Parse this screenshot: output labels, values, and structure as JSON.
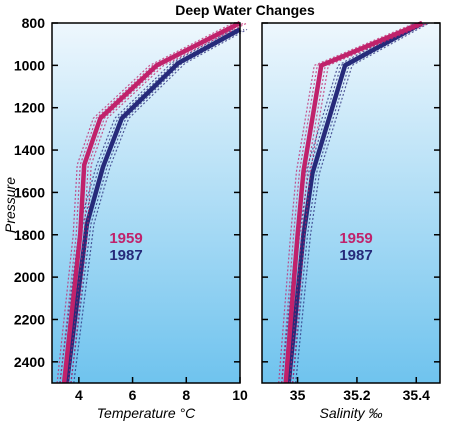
{
  "chart_data": {
    "title": "Deep Water Changes",
    "ylabel": "Pressure",
    "ylim": [
      800,
      2500
    ],
    "y_inverted": true,
    "y_ticks": [
      800,
      1000,
      1200,
      1400,
      1600,
      1800,
      2000,
      2200,
      2400
    ],
    "colors": {
      "1959": "#c0226b",
      "1987": "#262a7a",
      "panel_top": "#eef7fd",
      "panel_bottom": "#6fc3ee"
    },
    "panels": [
      {
        "type": "line",
        "xlabel": "Temperature °C",
        "xlim": [
          3,
          10
        ],
        "x_ticks": [
          4,
          6,
          8,
          10
        ],
        "series": [
          {
            "name": "1959",
            "x": [
              3.45,
              4.05,
              4.2,
              4.8,
              6.9,
              10.0
            ],
            "y": [
              2500,
              1800,
              1470,
              1250,
              1000,
              800
            ]
          },
          {
            "name": "1987",
            "x": [
              3.55,
              4.3,
              4.9,
              5.6,
              7.7,
              10.0
            ],
            "y": [
              2500,
              1750,
              1480,
              1250,
              990,
              830
            ]
          }
        ],
        "series_label_color": {
          "1959": "#c0226b",
          "1987": "#262a7a"
        }
      },
      {
        "type": "line",
        "xlabel": "Salinity ‰",
        "xlim": [
          34.88,
          35.48
        ],
        "x_ticks": [
          35.0,
          35.2,
          35.4
        ],
        "x_tick_labels": [
          "35",
          "35.2",
          "35.4"
        ],
        "series": [
          {
            "name": "1959",
            "x": [
              34.96,
              35.0,
              35.02,
              35.08,
              35.42
            ],
            "y": [
              2500,
              1800,
              1500,
              1000,
              800
            ]
          },
          {
            "name": "1987",
            "x": [
              34.97,
              35.02,
              35.05,
              35.16,
              35.42
            ],
            "y": [
              2500,
              1800,
              1510,
              1000,
              800
            ]
          }
        ]
      }
    ],
    "legend_entries": [
      "1959",
      "1987"
    ]
  }
}
